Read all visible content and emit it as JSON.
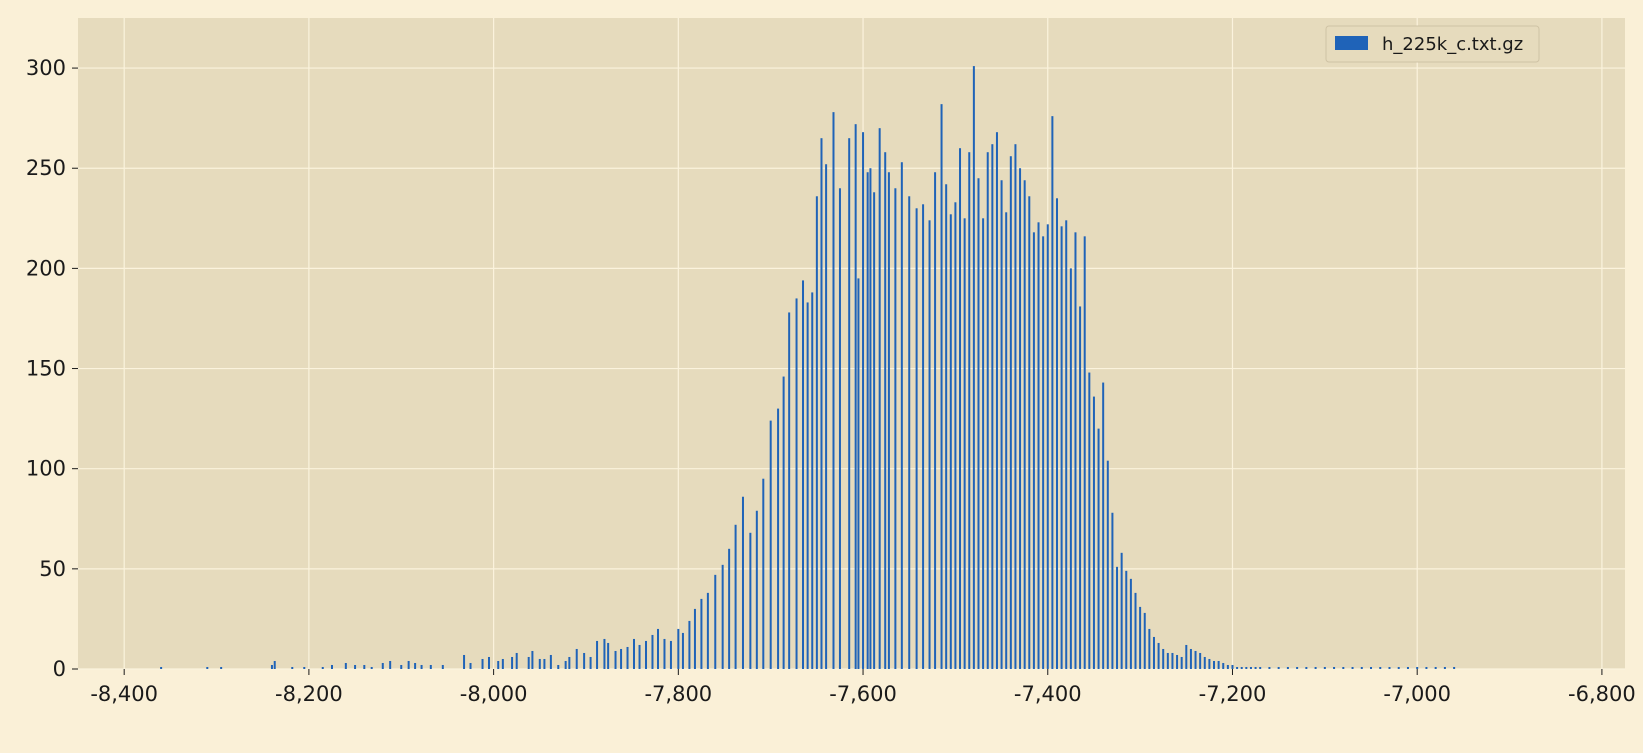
{
  "chart_data": {
    "type": "bar",
    "title": "",
    "xlabel": "",
    "ylabel": "",
    "xlim": [
      -8450,
      -6775
    ],
    "ylim": [
      0,
      325
    ],
    "grid": true,
    "legend_position": "top-right",
    "x_ticks": [
      {
        "value": -8400,
        "label": "-8,400"
      },
      {
        "value": -8200,
        "label": "-8,200"
      },
      {
        "value": -8000,
        "label": "-8,000"
      },
      {
        "value": -7800,
        "label": "-7,800"
      },
      {
        "value": -7600,
        "label": "-7,600"
      },
      {
        "value": -7400,
        "label": "-7,400"
      },
      {
        "value": -7200,
        "label": "-7,200"
      },
      {
        "value": -7000,
        "label": "-7,000"
      },
      {
        "value": -6800,
        "label": "-6,800"
      }
    ],
    "y_ticks": [
      {
        "value": 0,
        "label": "0"
      },
      {
        "value": 50,
        "label": "50"
      },
      {
        "value": 100,
        "label": "100"
      },
      {
        "value": 150,
        "label": "150"
      },
      {
        "value": 200,
        "label": "200"
      },
      {
        "value": 250,
        "label": "250"
      },
      {
        "value": 300,
        "label": "300"
      }
    ],
    "colors": {
      "figure_background": "#faf0d7",
      "plot_background": "#e6dbbd",
      "grid": "#fbf3dd",
      "bar": "#1f63b8",
      "text": "#1a1a1a"
    },
    "series": [
      {
        "name": "h_225k_c.txt.gz",
        "x": [
          -8360,
          -8310,
          -8295,
          -8240,
          -8237,
          -8218,
          -8205,
          -8185,
          -8175,
          -8160,
          -8150,
          -8140,
          -8132,
          -8120,
          -8112,
          -8100,
          -8092,
          -8085,
          -8078,
          -8068,
          -8055,
          -8032,
          -8025,
          -8012,
          -8005,
          -7995,
          -7990,
          -7980,
          -7975,
          -7962,
          -7958,
          -7950,
          -7945,
          -7938,
          -7930,
          -7922,
          -7918,
          -7910,
          -7902,
          -7895,
          -7888,
          -7880,
          -7876,
          -7868,
          -7862,
          -7855,
          -7848,
          -7842,
          -7835,
          -7828,
          -7822,
          -7815,
          -7808,
          -7800,
          -7795,
          -7788,
          -7782,
          -7775,
          -7768,
          -7760,
          -7752,
          -7745,
          -7738,
          -7730,
          -7722,
          -7715,
          -7708,
          -7700,
          -7692,
          -7686,
          -7680,
          -7672,
          -7665,
          -7660,
          -7655,
          -7650,
          -7645,
          -7640,
          -7632,
          -7625,
          -7615,
          -7608,
          -7605,
          -7600,
          -7595,
          -7592,
          -7588,
          -7582,
          -7576,
          -7572,
          -7565,
          -7558,
          -7550,
          -7542,
          -7535,
          -7528,
          -7522,
          -7515,
          -7510,
          -7505,
          -7500,
          -7495,
          -7490,
          -7485,
          -7480,
          -7475,
          -7470,
          -7465,
          -7460,
          -7455,
          -7450,
          -7445,
          -7440,
          -7435,
          -7430,
          -7425,
          -7420,
          -7415,
          -7410,
          -7405,
          -7400,
          -7395,
          -7390,
          -7385,
          -7380,
          -7375,
          -7370,
          -7365,
          -7360,
          -7355,
          -7350,
          -7345,
          -7340,
          -7335,
          -7330,
          -7325,
          -7320,
          -7315,
          -7310,
          -7305,
          -7300,
          -7295,
          -7290,
          -7285,
          -7280,
          -7275,
          -7270,
          -7265,
          -7260,
          -7255,
          -7250,
          -7245,
          -7240,
          -7235,
          -7230,
          -7225,
          -7220,
          -7215,
          -7210,
          -7205,
          -7200,
          -7195,
          -7190,
          -7185,
          -7180,
          -7175,
          -7170,
          -7160,
          -7150,
          -7140,
          -7130,
          -7120,
          -7110,
          -7100,
          -7090,
          -7080,
          -7070,
          -7060,
          -7050,
          -7040,
          -7030,
          -7020,
          -7010,
          -7000,
          -6990,
          -6980,
          -6970,
          -6960
        ],
        "values": [
          1,
          1,
          1,
          2,
          4,
          1,
          1,
          1,
          2,
          3,
          2,
          2,
          1,
          3,
          4,
          2,
          4,
          3,
          2,
          2,
          2,
          7,
          3,
          5,
          6,
          4,
          5,
          6,
          8,
          6,
          9,
          5,
          5,
          7,
          2,
          4,
          6,
          10,
          8,
          6,
          14,
          15,
          13,
          9,
          10,
          11,
          15,
          12,
          14,
          17,
          20,
          15,
          14,
          20,
          18,
          24,
          30,
          35,
          38,
          47,
          52,
          60,
          72,
          86,
          68,
          79,
          95,
          124,
          130,
          146,
          178,
          185,
          194,
          183,
          188,
          236,
          265,
          252,
          278,
          240,
          265,
          272,
          195,
          268,
          248,
          250,
          238,
          270,
          258,
          248,
          240,
          253,
          236,
          230,
          232,
          224,
          248,
          282,
          242,
          227,
          233,
          260,
          225,
          258,
          301,
          245,
          225,
          258,
          262,
          268,
          244,
          228,
          256,
          262,
          250,
          244,
          236,
          218,
          223,
          216,
          222,
          276,
          235,
          221,
          224,
          200,
          218,
          181,
          216,
          148,
          136,
          120,
          143,
          104,
          78,
          51,
          58,
          49,
          45,
          38,
          31,
          28,
          20,
          16,
          13,
          10,
          8,
          8,
          7,
          6,
          12,
          10,
          9,
          8,
          6,
          5,
          4,
          4,
          3,
          2,
          2,
          1,
          1,
          1,
          1,
          1,
          1,
          1,
          1,
          1,
          1,
          1,
          1,
          1,
          1,
          1,
          1,
          1,
          1,
          1,
          1,
          1,
          1,
          1,
          1,
          1,
          1,
          1
        ]
      }
    ]
  }
}
